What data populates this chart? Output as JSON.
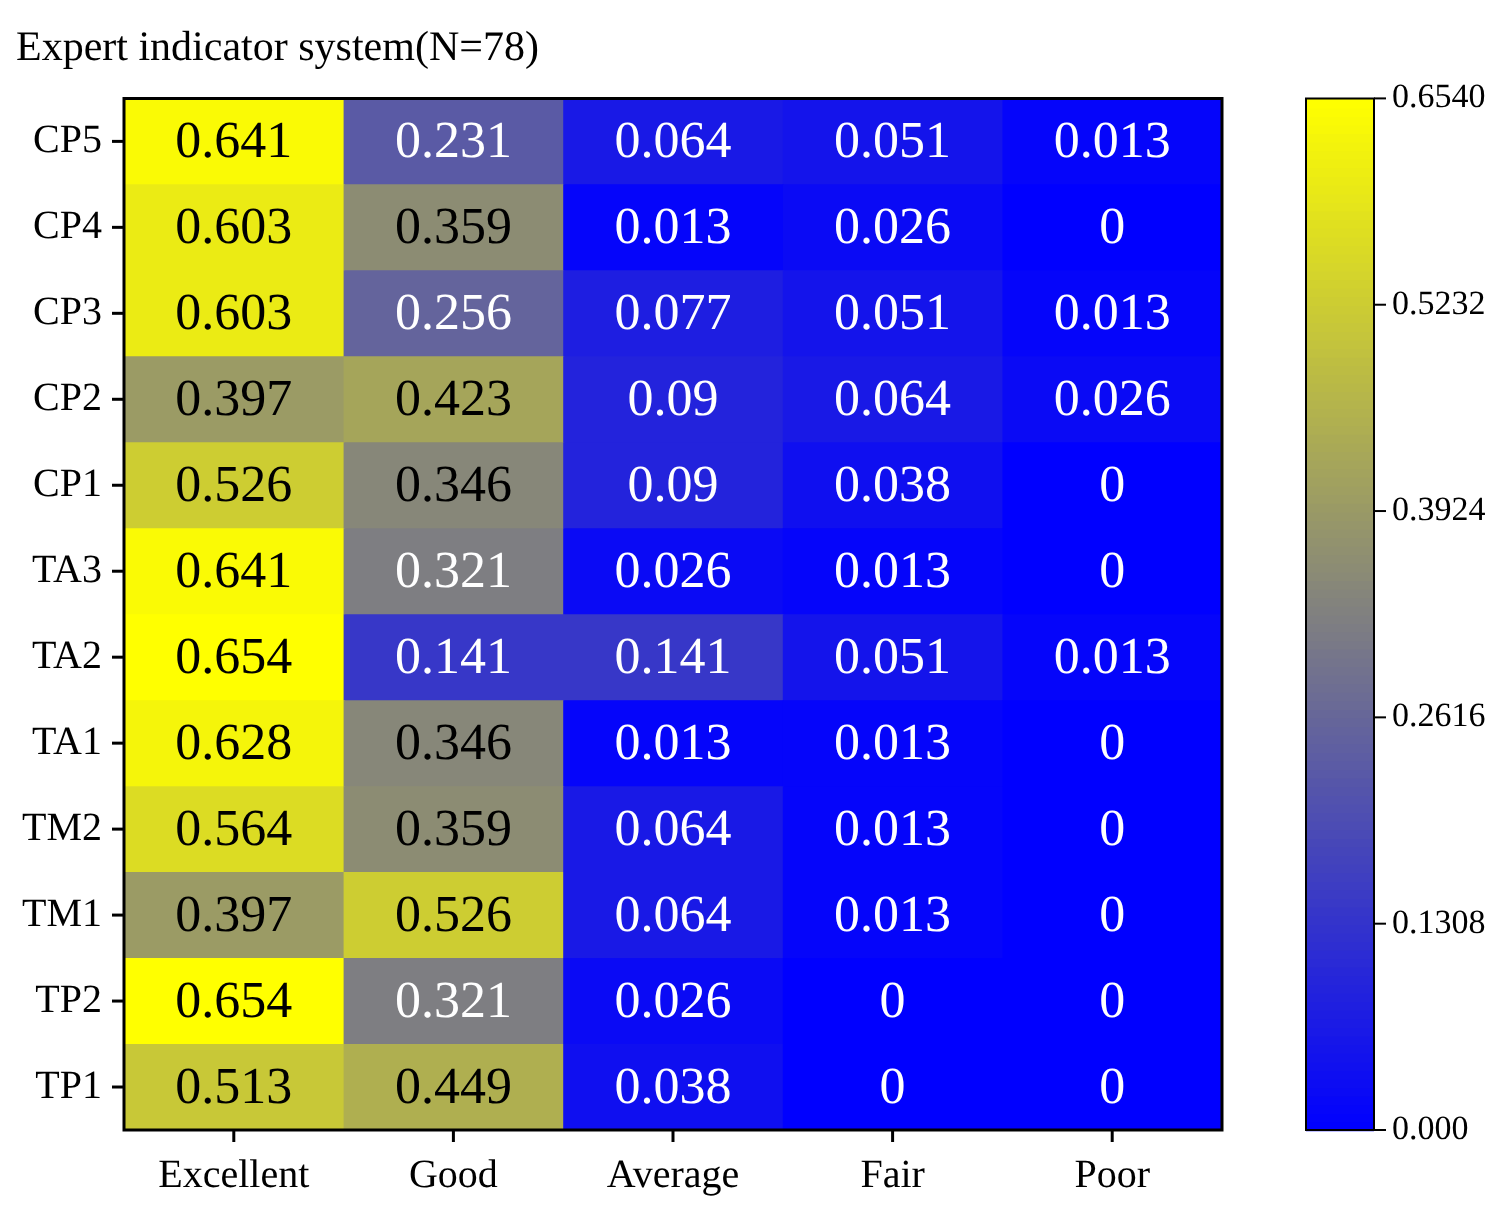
{
  "chart_data": {
    "type": "heatmap",
    "title": "Expert indicator system(N=78)",
    "categories": [
      "Excellent",
      "Good",
      "Average",
      "Fair",
      "Poor"
    ],
    "y_categories": [
      "CP5",
      "CP4",
      "CP3",
      "CP2",
      "CP1",
      "TA3",
      "TA2",
      "TA1",
      "TM2",
      "TM1",
      "TP2",
      "TP1"
    ],
    "cells": [
      [
        0.641,
        0.231,
        0.064,
        0.051,
        0.013
      ],
      [
        0.603,
        0.359,
        0.013,
        0.026,
        0
      ],
      [
        0.603,
        0.256,
        0.077,
        0.051,
        0.013
      ],
      [
        0.397,
        0.423,
        0.09,
        0.064,
        0.026
      ],
      [
        0.526,
        0.346,
        0.09,
        0.038,
        0
      ],
      [
        0.641,
        0.321,
        0.026,
        0.013,
        0
      ],
      [
        0.654,
        0.141,
        0.141,
        0.051,
        0.013
      ],
      [
        0.628,
        0.346,
        0.013,
        0.013,
        0
      ],
      [
        0.564,
        0.359,
        0.064,
        0.013,
        0
      ],
      [
        0.397,
        0.526,
        0.064,
        0.013,
        0
      ],
      [
        0.654,
        0.321,
        0.026,
        0,
        0
      ],
      [
        0.513,
        0.449,
        0.038,
        0,
        0
      ]
    ],
    "clim": [
      0,
      0.654
    ],
    "cticks": [
      {
        "value": 0,
        "label": "0.000"
      },
      0.1308,
      0.2616,
      0.3924,
      0.5232,
      {
        "value": 0.654,
        "label": "0.6540"
      }
    ],
    "data_labels": true
  }
}
